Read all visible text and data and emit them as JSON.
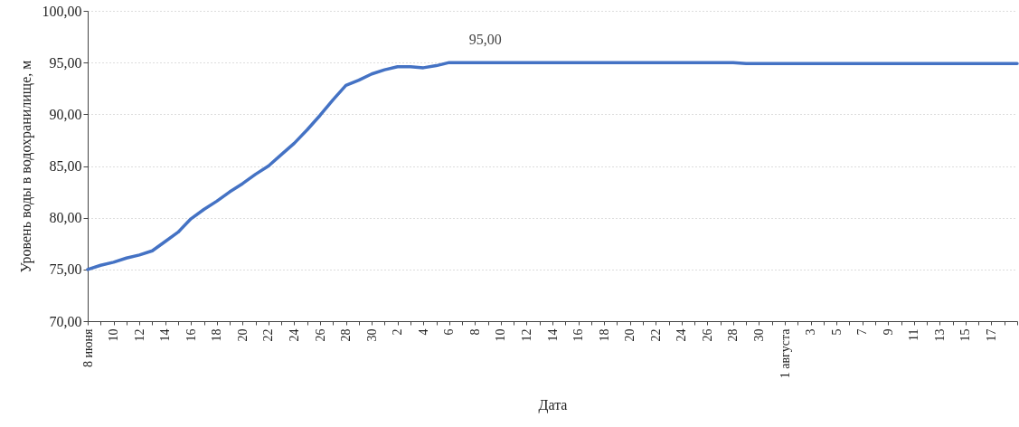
{
  "chart_data": {
    "type": "line",
    "xlabel": "Дата",
    "ylabel": "Уровень воды в водохранилище, м",
    "categories": [
      "8 июня",
      null,
      "10",
      null,
      "12",
      null,
      "14",
      null,
      "16",
      null,
      "18",
      null,
      "20",
      null,
      "22",
      null,
      "24",
      null,
      "26",
      null,
      "28",
      null,
      "30",
      null,
      "2",
      null,
      "4",
      null,
      "6",
      null,
      "8",
      null,
      "10",
      null,
      "12",
      null,
      "14",
      null,
      "16",
      null,
      "18",
      null,
      "20",
      null,
      "22",
      null,
      "24",
      null,
      "26",
      null,
      "28",
      null,
      "30",
      null,
      "1 августа",
      null,
      "3",
      null,
      "5",
      null,
      "7",
      null,
      "9",
      null,
      "11",
      null,
      "13",
      null,
      "15",
      null,
      "17",
      null,
      null
    ],
    "series": [
      {
        "color": "#4472c4",
        "values": [
          75.0,
          75.4,
          75.7,
          76.1,
          76.4,
          76.8,
          77.7,
          78.6,
          79.9,
          80.8,
          81.6,
          82.5,
          83.3,
          84.2,
          85.0,
          86.1,
          87.2,
          88.5,
          89.9,
          91.4,
          92.8,
          93.3,
          93.9,
          94.3,
          94.6,
          94.6,
          94.5,
          94.7,
          95.0,
          95.0,
          95.0,
          95.0,
          95.0,
          95.0,
          95.0,
          95.0,
          95.0,
          95.0,
          95.0,
          95.0,
          95.0,
          95.0,
          95.0,
          95.0,
          95.0,
          95.0,
          95.0,
          95.0,
          95.0,
          95.0,
          95.0,
          94.9,
          94.9,
          94.9,
          94.9,
          94.9,
          94.9,
          94.9,
          94.9,
          94.9,
          94.9,
          94.9,
          94.9,
          94.9,
          94.9,
          94.9,
          94.9,
          94.9,
          94.9,
          94.9,
          94.9,
          94.9,
          94.9
        ]
      }
    ],
    "ylim": [
      70,
      100
    ],
    "yticks": [
      {
        "value": 70,
        "label": "70,00"
      },
      {
        "value": 75,
        "label": "75,00"
      },
      {
        "value": 80,
        "label": "80,00"
      },
      {
        "value": 85,
        "label": "85,00"
      },
      {
        "value": 90,
        "label": "90,00"
      },
      {
        "value": 95,
        "label": "95,00"
      },
      {
        "value": 100,
        "label": "100,00"
      }
    ],
    "grid": "y",
    "marker": "none",
    "line_style": "solid",
    "annotations": [
      {
        "text": "95,00",
        "x": "6",
        "y": 95
      }
    ]
  }
}
